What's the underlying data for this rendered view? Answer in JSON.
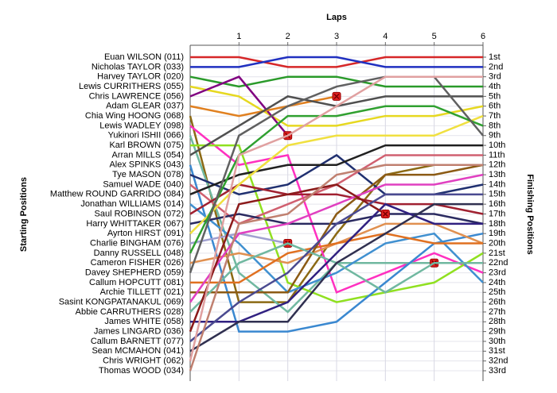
{
  "chart_data": {
    "type": "lap",
    "title": "Laps",
    "ylabel": "Starting Positions",
    "y2label": "Finishing Positions",
    "x": [
      0,
      1,
      2,
      3,
      4,
      5,
      6
    ],
    "xlim": [
      0,
      6
    ],
    "xticks": [
      1,
      2,
      3,
      4,
      5,
      6
    ],
    "ylim": [
      1,
      33
    ],
    "grid": true,
    "y2ticks": [
      {
        "value": 1,
        "label": "1st"
      },
      {
        "value": 2,
        "label": "2nd"
      },
      {
        "value": 3,
        "label": "3rd"
      },
      {
        "value": 4,
        "label": "4th"
      },
      {
        "value": 5,
        "label": "5th"
      },
      {
        "value": 6,
        "label": "6th"
      },
      {
        "value": 7,
        "label": "7th"
      },
      {
        "value": 8,
        "label": "8th"
      },
      {
        "value": 9,
        "label": "9th"
      },
      {
        "value": 10,
        "label": "10th"
      },
      {
        "value": 11,
        "label": "11th"
      },
      {
        "value": 12,
        "label": "12th"
      },
      {
        "value": 13,
        "label": "13th"
      },
      {
        "value": 14,
        "label": "14th"
      },
      {
        "value": 15,
        "label": "15th"
      },
      {
        "value": 16,
        "label": "16th"
      },
      {
        "value": 17,
        "label": "17th"
      },
      {
        "value": 18,
        "label": "18th"
      },
      {
        "value": 19,
        "label": "19th"
      },
      {
        "value": 20,
        "label": "20th"
      },
      {
        "value": 21,
        "label": "21st"
      },
      {
        "value": 22,
        "label": "22nd"
      },
      {
        "value": 23,
        "label": "23rd"
      },
      {
        "value": 24,
        "label": "24th"
      },
      {
        "value": 25,
        "label": "25th"
      },
      {
        "value": 26,
        "label": "26th"
      },
      {
        "value": 27,
        "label": "27th"
      },
      {
        "value": 28,
        "label": "28th"
      },
      {
        "value": 29,
        "label": "29th"
      },
      {
        "value": 30,
        "label": "30th"
      },
      {
        "value": 31,
        "label": "31st"
      },
      {
        "value": 32,
        "label": "32nd"
      },
      {
        "value": 33,
        "label": "33rd"
      }
    ],
    "series": [
      {
        "name": "Euan WILSON (011)",
        "color": "#d62728",
        "values": [
          1,
          1,
          2,
          2,
          1,
          1,
          1
        ]
      },
      {
        "name": "Nicholas TAYLOR (033)",
        "color": "#2030c0",
        "values": [
          2,
          2,
          1,
          1,
          2,
          2,
          2
        ]
      },
      {
        "name": "Harvey TAYLOR (020)",
        "color": "#2a9a2a",
        "values": [
          3,
          4,
          3,
          3,
          4,
          4,
          4
        ]
      },
      {
        "name": "Lewis CURRITHERS (055)",
        "color": "#e6d820",
        "values": [
          4,
          5,
          8,
          8,
          7,
          7,
          6
        ]
      },
      {
        "name": "Chris LAWRENCE (056)",
        "color": "#800080",
        "values": [
          5,
          3,
          9,
          null,
          null,
          null,
          null
        ]
      },
      {
        "name": "Adam GLEAR (037)",
        "color": "#e08020",
        "values": [
          6,
          7,
          6,
          5,
          null,
          null,
          null
        ]
      },
      {
        "name": "Chia Wing HOONG (068)",
        "color": "#8b6914",
        "values": [
          7,
          26,
          26,
          19,
          13,
          12,
          12
        ]
      },
      {
        "name": "Lewis WADLEY (098)",
        "color": "#ff30c0",
        "values": [
          8,
          12,
          11,
          25,
          23,
          21,
          23
        ]
      },
      {
        "name": "Yukinori ISHII (066)",
        "color": "#70b8a0",
        "values": [
          9,
          23,
          27,
          22,
          22,
          22,
          null
        ]
      },
      {
        "name": "Karl BROWN (075)",
        "color": "#90e020",
        "values": [
          10,
          10,
          24,
          26,
          25,
          24,
          21
        ]
      },
      {
        "name": "Arran MILLS (054)",
        "color": "#505050",
        "values": [
          11,
          8,
          5,
          6,
          5,
          5,
          5
        ]
      },
      {
        "name": "Alex SPINKS (043)",
        "color": "#3a88d0",
        "values": [
          12,
          29,
          29,
          28,
          24,
          20,
          19
        ]
      },
      {
        "name": "Tye MASON (078)",
        "color": "#203070",
        "values": [
          13,
          15,
          14,
          11,
          15,
          15,
          14
        ]
      },
      {
        "name": "Samuel WADE (040)",
        "color": "#d06070",
        "values": [
          14,
          18,
          16,
          14,
          11,
          11,
          11
        ]
      },
      {
        "name": "Matthew ROUND GARRIDO (084)",
        "color": "#202020",
        "values": [
          15,
          13,
          12,
          12,
          10,
          10,
          10
        ]
      },
      {
        "name": "Jonathan WILLIAMS (014)",
        "color": "#4090d0",
        "values": [
          16,
          20,
          25,
          23,
          20,
          19,
          24
        ]
      },
      {
        "name": "Saul ROBINSON (072)",
        "color": "#a02030",
        "values": [
          17,
          14,
          15,
          15,
          16,
          16,
          17
        ]
      },
      {
        "name": "Harry WHITTAKER (067)",
        "color": "#2a2a60",
        "values": [
          18,
          17,
          18,
          18,
          17,
          17,
          18
        ]
      },
      {
        "name": "Ayrton HIRST (091)",
        "color": "#f0e040",
        "values": [
          19,
          14,
          10,
          9,
          9,
          9,
          7
        ]
      },
      {
        "name": "Charlie BINGHAM (076)",
        "color": "#a0a0d0",
        "values": [
          20,
          19,
          20,
          null,
          null,
          null,
          null
        ]
      },
      {
        "name": "Danny RUSSELL (048)",
        "color": "#30a030",
        "values": [
          21,
          11,
          7,
          7,
          6,
          6,
          8
        ]
      },
      {
        "name": "Cameron FISHER (026)",
        "color": "#e09050",
        "values": [
          22,
          21,
          22,
          20,
          18,
          18,
          20
        ]
      },
      {
        "name": "Davey SHEPHERD (059)",
        "color": "#606060",
        "values": [
          23,
          9,
          6,
          4,
          3,
          3,
          9
        ]
      },
      {
        "name": "Callum HOPCUTT (081)",
        "color": "#e07020",
        "values": [
          24,
          24,
          21,
          20,
          19,
          20,
          20
        ]
      },
      {
        "name": "Archie TILLETT (021)",
        "color": "#8b5a14",
        "values": [
          25,
          25,
          25,
          17,
          13,
          13,
          12
        ]
      },
      {
        "name": "Sasint KONGPATANAKUL (069)",
        "color": "#e040c0",
        "values": [
          26,
          19,
          18,
          16,
          14,
          14,
          13
        ]
      },
      {
        "name": "Abbie CARRUTHERS (028)",
        "color": "#70b8a0",
        "values": [
          27,
          22,
          20,
          22,
          25,
          22,
          22
        ]
      },
      {
        "name": "James WHITE (058)",
        "color": "#302080",
        "values": [
          28,
          28,
          26,
          21,
          16,
          18,
          18
        ]
      },
      {
        "name": "James LINGARD (036)",
        "color": "#8b1a1a",
        "values": [
          29,
          16,
          15,
          14,
          17,
          null,
          null
        ]
      },
      {
        "name": "Callum BARNETT (077)",
        "color": "#4a4a90",
        "values": [
          30,
          26,
          23,
          18,
          15,
          15,
          15
        ]
      },
      {
        "name": "Sean MCMAHON (041)",
        "color": "#303050",
        "values": [
          31,
          28,
          28,
          22,
          19,
          16,
          16
        ]
      },
      {
        "name": "Chris WRIGHT (062)",
        "color": "#e0a0a0",
        "values": [
          32,
          11,
          9,
          6,
          3,
          3,
          3
        ]
      },
      {
        "name": "Thomas WOOD (034)",
        "color": "#c08070",
        "values": [
          33,
          18,
          17,
          13,
          12,
          12,
          12
        ]
      }
    ]
  }
}
